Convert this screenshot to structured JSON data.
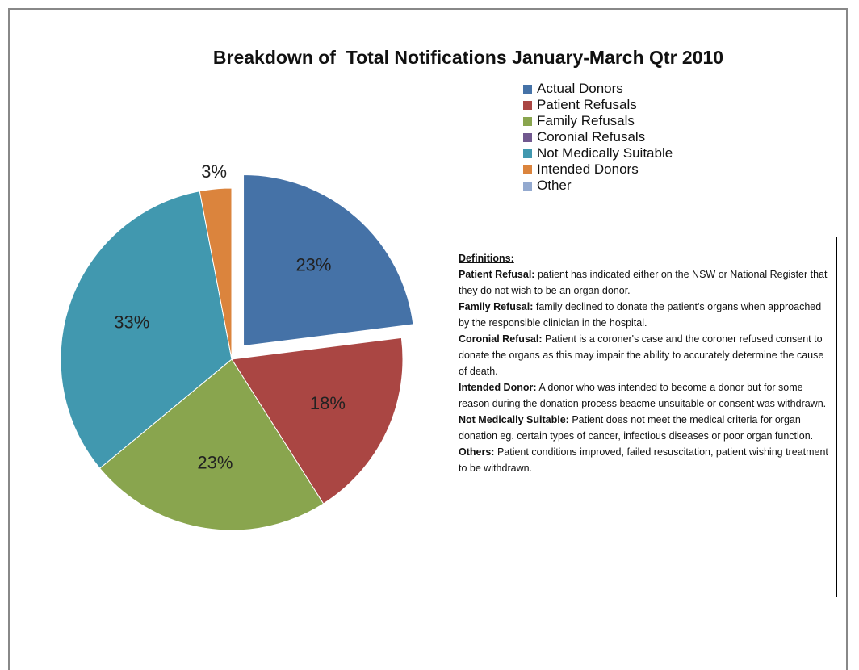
{
  "chart_data": {
    "type": "pie",
    "title": "Breakdown of  Total Notifications January-March Qtr 2010",
    "categories": [
      "Actual Donors",
      "Patient Refusals",
      "Family Refusals",
      "Coronial Refusals",
      "Not Medically Suitable",
      "Intended Donors",
      "Other"
    ],
    "values": [
      23,
      18,
      23,
      0,
      33,
      3,
      0
    ],
    "value_labels": [
      "23%",
      "18%",
      "23%",
      null,
      "33%",
      "3%",
      null
    ],
    "colors": [
      "#4572a7",
      "#aa4643",
      "#89a54e",
      "#71588f",
      "#4198af",
      "#db843d",
      "#93a9cf"
    ],
    "exploded": [
      0
    ],
    "legend": "right"
  },
  "definitions": {
    "title": "Definitions:",
    "items": [
      {
        "term": "Patient Refusal:",
        "text": "patient has indicated either on the NSW or National Register  that they  do not wish to be an organ donor."
      },
      {
        "term": "Family Refusal:",
        "text": "family declined to donate the patient's organs when approached by the responsible clinician in the hospital."
      },
      {
        "term": "Coronial Refusal:",
        "text": "Patient is a coroner's case and the coroner refused consent to donate the organs as this may impair the ability to accurately determine the cause of death."
      },
      {
        "term": "Intended Donor:",
        "text": "A donor who was intended to become  a donor but for some reason during the donation process beacme unsuitable or consent was withdrawn."
      },
      {
        "term": "Not Medically Suitable:",
        "text": "Patient does not meet the medical criteria for organ donation eg. certain types of cancer, infectious diseases or poor organ function."
      },
      {
        "term": "Others:",
        "text": "Patient conditions improved, failed resuscitation, patient wishing  treatment to be withdrawn."
      }
    ]
  }
}
